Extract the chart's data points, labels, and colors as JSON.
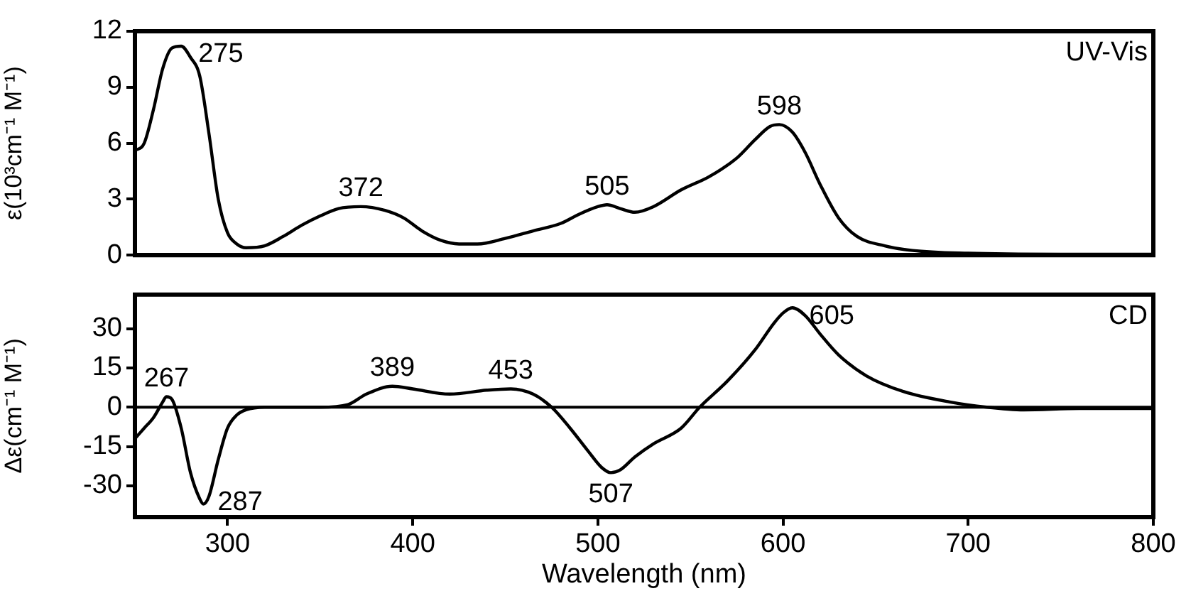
{
  "chart_data": [
    {
      "type": "line",
      "ylabel": "ε(10³cm⁻¹ M⁻¹)",
      "xlim": [
        250,
        800
      ],
      "ylim": [
        0,
        12
      ],
      "yticks": [
        0,
        3,
        6,
        9,
        12
      ],
      "tick_labels": "y",
      "grid": false,
      "legend": false,
      "marker": "none",
      "line_style": "solid",
      "x": [
        250,
        255,
        260,
        265,
        270,
        275,
        280,
        285,
        290,
        295,
        300,
        305,
        310,
        320,
        330,
        340,
        350,
        360,
        372,
        385,
        395,
        405,
        415,
        425,
        435,
        450,
        465,
        480,
        490,
        500,
        505,
        512,
        520,
        530,
        545,
        560,
        575,
        585,
        593,
        598,
        605,
        612,
        620,
        630,
        640,
        655,
        670,
        700,
        750,
        800
      ],
      "series": [
        {
          "color": "#000000",
          "values": [
            5.6,
            6.0,
            7.8,
            10,
            11.1,
            11.2,
            10.6,
            9.6,
            6.5,
            3.0,
            1.2,
            0.6,
            0.4,
            0.5,
            1.0,
            1.6,
            2.1,
            2.5,
            2.6,
            2.4,
            2.0,
            1.3,
            0.8,
            0.6,
            0.6,
            0.9,
            1.3,
            1.7,
            2.2,
            2.6,
            2.7,
            2.5,
            2.3,
            2.6,
            3.5,
            4.2,
            5.2,
            6.2,
            6.9,
            7.0,
            6.6,
            5.5,
            3.8,
            2.0,
            1.0,
            0.5,
            0.25,
            0.1,
            0.05,
            0.05
          ]
        }
      ],
      "annotations": [
        {
          "text": "275",
          "x": 275,
          "y": 11.2
        },
        {
          "text": "372",
          "x": 372,
          "y": 2.6
        },
        {
          "text": "505",
          "x": 505,
          "y": 2.7
        },
        {
          "text": "598",
          "x": 598,
          "y": 7.0
        },
        "UV-Vis"
      ]
    },
    {
      "type": "line",
      "xlabel": "Wavelength (nm)",
      "ylabel": "Δε(cm⁻¹ M⁻¹)",
      "xlim": [
        250,
        800
      ],
      "xticks": [
        300,
        400,
        500,
        600,
        700,
        800
      ],
      "ylim": [
        -42,
        43
      ],
      "yticks": [
        -30,
        -15,
        0,
        15,
        30
      ],
      "grid": false,
      "legend": false,
      "marker": "none",
      "line_style": "solid",
      "x": [
        250,
        255,
        260,
        265,
        267,
        270,
        275,
        280,
        285,
        287,
        290,
        295,
        300,
        305,
        310,
        320,
        350,
        365,
        375,
        389,
        400,
        420,
        440,
        453,
        465,
        475,
        485,
        495,
        502,
        507,
        512,
        520,
        530,
        545,
        555,
        570,
        585,
        595,
        600,
        605,
        612,
        620,
        630,
        645,
        665,
        690,
        710,
        730,
        760,
        800
      ],
      "series": [
        {
          "color": "#000000",
          "values": [
            -12,
            -8,
            -4,
            2,
            4,
            3,
            -8,
            -25,
            -35,
            -37,
            -34,
            -20,
            -8,
            -3,
            -1,
            0,
            0,
            1,
            5,
            8,
            7,
            5,
            6.5,
            7,
            5,
            0,
            -8,
            -17,
            -23,
            -25,
            -24,
            -19,
            -14,
            -8,
            0,
            10,
            22,
            32,
            36,
            38,
            35,
            28,
            20,
            12,
            6,
            2,
            0,
            -1,
            -0.5,
            -0.5
          ]
        }
      ],
      "ref_lines": [
        {
          "axis": "y",
          "value": 0
        }
      ],
      "annotations": [
        {
          "text": "267",
          "x": 267,
          "y": 4
        },
        {
          "text": "287",
          "x": 287,
          "y": -37
        },
        {
          "text": "389",
          "x": 389,
          "y": 8
        },
        {
          "text": "453",
          "x": 453,
          "y": 7
        },
        {
          "text": "507",
          "x": 507,
          "y": -25
        },
        {
          "text": "605",
          "x": 605,
          "y": 38
        },
        "CD"
      ]
    }
  ]
}
